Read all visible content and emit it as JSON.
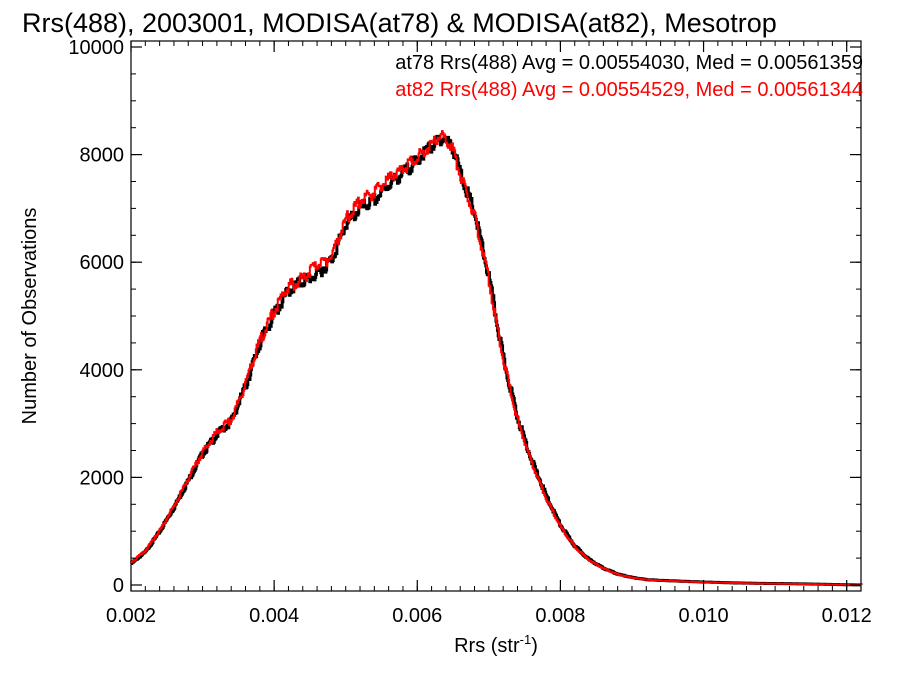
{
  "chart_data": {
    "type": "line",
    "title": "Rrs(488), 2003001, MODISA(at78) & MODISA(at82), Mesotrop",
    "xlabel": "Rrs (str",
    "xlabel_sup": "-1",
    "xlabel_close": ")",
    "ylabel": "Number of Observations",
    "xlim": [
      0.002,
      0.0122
    ],
    "ylim": [
      0,
      10000
    ],
    "xticks": [
      0.002,
      0.004,
      0.006,
      0.008,
      0.01,
      0.012
    ],
    "xtick_labels": [
      "0.002",
      "0.004",
      "0.006",
      "0.008",
      "0.010",
      "0.012"
    ],
    "yticks": [
      0,
      2000,
      4000,
      6000,
      8000,
      10000
    ],
    "ytick_labels": [
      "0",
      "2000",
      "4000",
      "6000",
      "8000",
      "10000"
    ],
    "annotations": [
      "at78 Rrs(488) Avg = 0.00554030, Med = 0.00561359",
      "at82 Rrs(488) Avg = 0.00554529, Med = 0.00561344"
    ],
    "series": [
      {
        "color": "#000000",
        "x": [
          0.002,
          0.0022,
          0.0024,
          0.0026,
          0.0028,
          0.003,
          0.0032,
          0.0034,
          0.0036,
          0.0038,
          0.004,
          0.0041,
          0.0042,
          0.0044,
          0.0046,
          0.0048,
          0.005,
          0.0052,
          0.0054,
          0.0056,
          0.0058,
          0.006,
          0.0061,
          0.0062,
          0.0063,
          0.0064,
          0.0065,
          0.0066,
          0.0068,
          0.007,
          0.0072,
          0.0074,
          0.0076,
          0.0078,
          0.008,
          0.0082,
          0.0084,
          0.0086,
          0.0088,
          0.009,
          0.0092,
          0.0094,
          0.0096,
          0.0098,
          0.01,
          0.0104,
          0.0108,
          0.0112,
          0.0116,
          0.012,
          0.0122
        ],
        "y": [
          400,
          620,
          1000,
          1450,
          1950,
          2450,
          2800,
          3050,
          3700,
          4500,
          5050,
          5250,
          5480,
          5650,
          5780,
          6050,
          6700,
          7000,
          7150,
          7450,
          7650,
          7900,
          8050,
          8150,
          8300,
          8280,
          8100,
          7650,
          6900,
          5700,
          4200,
          3100,
          2300,
          1650,
          1100,
          720,
          470,
          310,
          200,
          140,
          100,
          85,
          75,
          65,
          55,
          40,
          30,
          25,
          15,
          5,
          2
        ]
      },
      {
        "color": "#ff0000",
        "x": [
          0.002,
          0.0022,
          0.0024,
          0.0026,
          0.0028,
          0.003,
          0.0032,
          0.0034,
          0.0036,
          0.0038,
          0.004,
          0.0041,
          0.0042,
          0.0044,
          0.0046,
          0.0048,
          0.005,
          0.0052,
          0.0054,
          0.0056,
          0.0058,
          0.006,
          0.0061,
          0.0062,
          0.0063,
          0.0064,
          0.0065,
          0.0066,
          0.0068,
          0.007,
          0.0072,
          0.0074,
          0.0076,
          0.0078,
          0.008,
          0.0082,
          0.0084,
          0.0086,
          0.0088,
          0.009,
          0.0092,
          0.0094,
          0.0096,
          0.0098,
          0.01,
          0.0104,
          0.0108,
          0.0112,
          0.0116,
          0.012,
          0.0122
        ],
        "y": [
          420,
          640,
          1020,
          1480,
          1980,
          2480,
          2850,
          3080,
          3750,
          4550,
          5100,
          5350,
          5550,
          5700,
          5950,
          6100,
          6800,
          7150,
          7300,
          7550,
          7750,
          7950,
          8080,
          8200,
          8350,
          8300,
          8080,
          7600,
          6850,
          5650,
          4150,
          3050,
          2250,
          1600,
          1080,
          700,
          460,
          305,
          195,
          135,
          98,
          82,
          72,
          62,
          52,
          38,
          28,
          22,
          14,
          5,
          2
        ]
      }
    ]
  }
}
